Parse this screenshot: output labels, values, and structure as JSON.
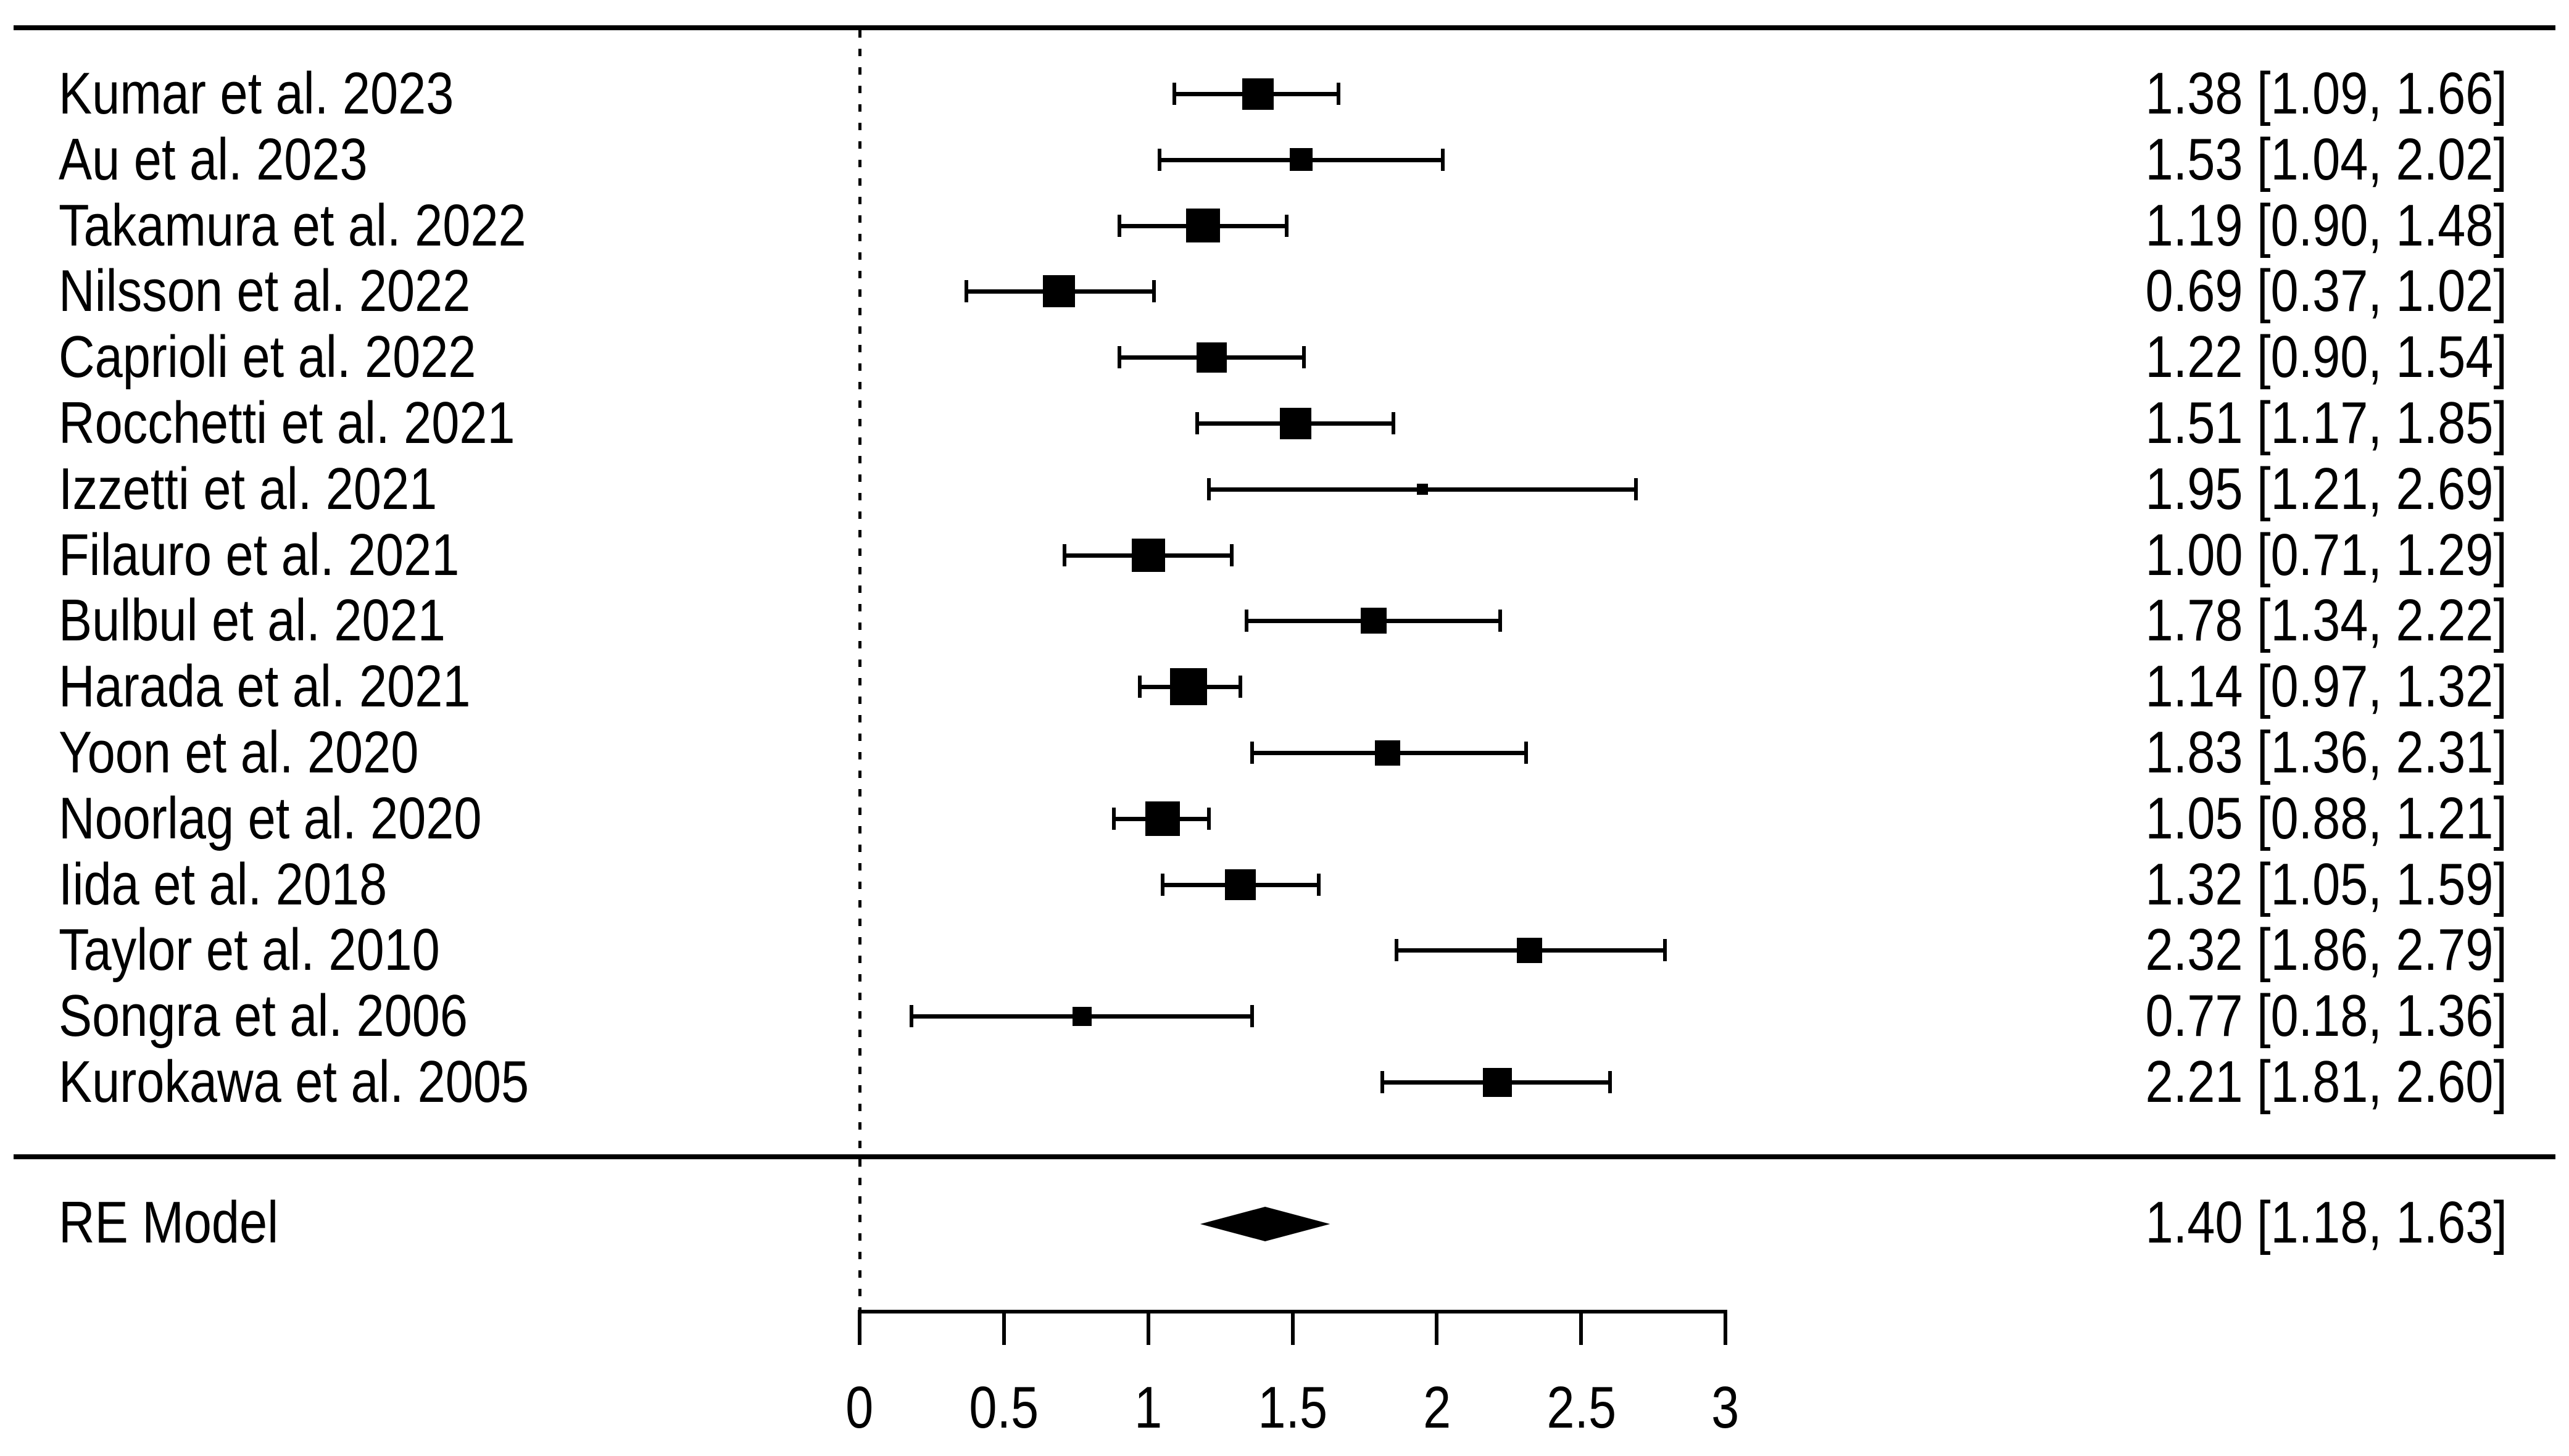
{
  "figure": {
    "background_color": "#ffffff",
    "foreground_color": "#000000"
  },
  "chart_data": {
    "type": "forest",
    "title": "",
    "xlabel": "",
    "x_axis": {
      "range": [
        0,
        3
      ],
      "ticks": [
        0,
        0.5,
        1,
        1.5,
        2,
        2.5,
        3
      ],
      "tick_labels": [
        "0",
        "0.5",
        "1",
        "1.5",
        "2",
        "2.5",
        "3"
      ],
      "reference_line": 0
    },
    "studies": [
      {
        "label": "Kumar et al. 2023",
        "estimate": 1.38,
        "ci_lower": 1.09,
        "ci_upper": 1.66,
        "annotation": "1.38 [1.09, 1.66]",
        "marker_size_px": 51
      },
      {
        "label": "Au et al. 2023",
        "estimate": 1.53,
        "ci_lower": 1.04,
        "ci_upper": 2.02,
        "annotation": "1.53 [1.04, 2.02]",
        "marker_size_px": 37
      },
      {
        "label": "Takamura et al. 2022",
        "estimate": 1.19,
        "ci_lower": 0.9,
        "ci_upper": 1.48,
        "annotation": "1.19 [0.90, 1.48]",
        "marker_size_px": 55
      },
      {
        "label": "Nilsson et al. 2022",
        "estimate": 0.69,
        "ci_lower": 0.37,
        "ci_upper": 1.02,
        "annotation": "0.69 [0.37, 1.02]",
        "marker_size_px": 52
      },
      {
        "label": "Caprioli et al. 2022",
        "estimate": 1.22,
        "ci_lower": 0.9,
        "ci_upper": 1.54,
        "annotation": "1.22 [0.90, 1.54]",
        "marker_size_px": 49
      },
      {
        "label": "Rocchetti et al. 2021",
        "estimate": 1.51,
        "ci_lower": 1.17,
        "ci_upper": 1.85,
        "annotation": "1.51 [1.17, 1.85]",
        "marker_size_px": 51
      },
      {
        "label": "Izzetti et al. 2021",
        "estimate": 1.95,
        "ci_lower": 1.21,
        "ci_upper": 2.69,
        "annotation": "1.95 [1.21, 2.69]",
        "marker_size_px": 18
      },
      {
        "label": "Filauro et al. 2021",
        "estimate": 1.0,
        "ci_lower": 0.71,
        "ci_upper": 1.29,
        "annotation": "1.00 [0.71, 1.29]",
        "marker_size_px": 54
      },
      {
        "label": "Bulbul et al. 2021",
        "estimate": 1.78,
        "ci_lower": 1.34,
        "ci_upper": 2.22,
        "annotation": "1.78 [1.34, 2.22]",
        "marker_size_px": 42
      },
      {
        "label": "Harada et al. 2021",
        "estimate": 1.14,
        "ci_lower": 0.97,
        "ci_upper": 1.32,
        "annotation": "1.14 [0.97, 1.32]",
        "marker_size_px": 60
      },
      {
        "label": "Yoon et al. 2020",
        "estimate": 1.83,
        "ci_lower": 1.36,
        "ci_upper": 2.31,
        "annotation": "1.83 [1.36, 2.31]",
        "marker_size_px": 41
      },
      {
        "label": "Noorlag et al. 2020",
        "estimate": 1.05,
        "ci_lower": 0.88,
        "ci_upper": 1.21,
        "annotation": "1.05 [0.88, 1.21]",
        "marker_size_px": 56
      },
      {
        "label": "Iida et al. 2018",
        "estimate": 1.32,
        "ci_lower": 1.05,
        "ci_upper": 1.59,
        "annotation": "1.32 [1.05, 1.59]",
        "marker_size_px": 50
      },
      {
        "label": "Taylor et al. 2010",
        "estimate": 2.32,
        "ci_lower": 1.86,
        "ci_upper": 2.79,
        "annotation": "2.32 [1.86, 2.79]",
        "marker_size_px": 41
      },
      {
        "label": "Songra et al. 2006",
        "estimate": 0.77,
        "ci_lower": 0.18,
        "ci_upper": 1.36,
        "annotation": "0.77 [0.18, 1.36]",
        "marker_size_px": 31
      },
      {
        "label": "Kurokawa et al. 2005",
        "estimate": 2.21,
        "ci_lower": 1.81,
        "ci_upper": 2.6,
        "annotation": "2.21 [1.81, 2.60]",
        "marker_size_px": 47
      }
    ],
    "summary": {
      "label": "RE Model",
      "estimate": 1.4,
      "ci_lower": 1.18,
      "ci_upper": 1.63,
      "annotation": "1.40 [1.18, 1.63]"
    }
  }
}
